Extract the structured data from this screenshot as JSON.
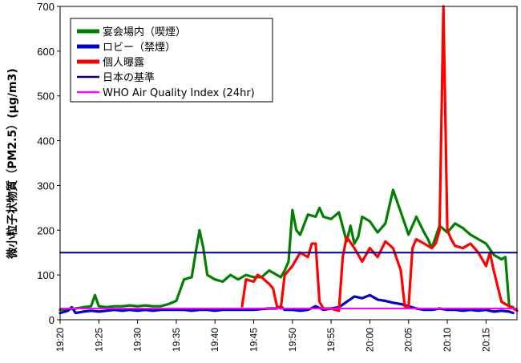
{
  "chart_data": {
    "type": "line",
    "ylabel": "微小粒子状物質（PM2.5）(μg/m3)",
    "xlabel": "",
    "ylim": [
      0,
      700
    ],
    "yticks": [
      0,
      100,
      200,
      300,
      400,
      500,
      600,
      700
    ],
    "xticks": [
      "19:20",
      "19:25",
      "19:30",
      "19:35",
      "19:40",
      "19:45",
      "19:50",
      "19:55",
      "20:00",
      "20:05",
      "20:10",
      "20:15"
    ],
    "xlim": [
      "19:20",
      "20:19"
    ],
    "grid": false,
    "legend_position": "top-left",
    "series": [
      {
        "name": "宴会場内（喫煙）",
        "color": "#008000",
        "points": [
          [
            "19:20",
            22
          ],
          [
            "19:21",
            24
          ],
          [
            "19:22",
            25
          ],
          [
            "19:23",
            28
          ],
          [
            "19:24",
            30
          ],
          [
            "19:24.5",
            55
          ],
          [
            "19:25",
            30
          ],
          [
            "19:26",
            28
          ],
          [
            "19:27",
            30
          ],
          [
            "19:28",
            30
          ],
          [
            "19:29",
            32
          ],
          [
            "19:30",
            30
          ],
          [
            "19:31",
            32
          ],
          [
            "19:32",
            30
          ],
          [
            "19:33",
            30
          ],
          [
            "19:34",
            35
          ],
          [
            "19:35",
            42
          ],
          [
            "19:36",
            90
          ],
          [
            "19:37",
            95
          ],
          [
            "19:37.5",
            150
          ],
          [
            "19:38",
            200
          ],
          [
            "19:38.5",
            160
          ],
          [
            "19:39",
            100
          ],
          [
            "19:40",
            90
          ],
          [
            "19:41",
            85
          ],
          [
            "19:42",
            100
          ],
          [
            "19:43",
            90
          ],
          [
            "19:44",
            100
          ],
          [
            "19:45",
            95
          ],
          [
            "19:46",
            95
          ],
          [
            "19:47",
            110
          ],
          [
            "19:48",
            100
          ],
          [
            "19:48.5",
            95
          ],
          [
            "19:49",
            110
          ],
          [
            "19:49.5",
            130
          ],
          [
            "19:50",
            245
          ],
          [
            "19:50.5",
            200
          ],
          [
            "19:51",
            190
          ],
          [
            "19:52",
            235
          ],
          [
            "19:53",
            230
          ],
          [
            "19:53.5",
            250
          ],
          [
            "19:54",
            230
          ],
          [
            "19:55",
            225
          ],
          [
            "19:56",
            240
          ],
          [
            "19:57",
            175
          ],
          [
            "19:57.5",
            210
          ],
          [
            "19:58",
            170
          ],
          [
            "19:58.5",
            185
          ],
          [
            "19:59",
            230
          ],
          [
            "20:00",
            220
          ],
          [
            "20:01",
            195
          ],
          [
            "20:02",
            215
          ],
          [
            "20:03",
            290
          ],
          [
            "20:04",
            240
          ],
          [
            "20:05",
            190
          ],
          [
            "20:06",
            230
          ],
          [
            "20:07",
            195
          ],
          [
            "20:07.5",
            180
          ],
          [
            "20:08",
            160
          ],
          [
            "20:09",
            210
          ],
          [
            "20:10",
            195
          ],
          [
            "20:11",
            215
          ],
          [
            "20:12",
            205
          ],
          [
            "20:13",
            190
          ],
          [
            "20:14",
            180
          ],
          [
            "20:15",
            170
          ],
          [
            "20:16",
            145
          ],
          [
            "20:17",
            135
          ],
          [
            "20:17.5",
            140
          ],
          [
            "20:18",
            30
          ],
          [
            "20:18.5",
            28
          ]
        ]
      },
      {
        "name": "ロビー（禁煙）",
        "color": "#0000d0",
        "points": [
          [
            "19:20",
            15
          ],
          [
            "19:21",
            20
          ],
          [
            "19:21.5",
            28
          ],
          [
            "19:22",
            15
          ],
          [
            "19:23",
            18
          ],
          [
            "19:24",
            20
          ],
          [
            "19:25",
            18
          ],
          [
            "19:26",
            20
          ],
          [
            "19:27",
            22
          ],
          [
            "19:28",
            20
          ],
          [
            "19:29",
            22
          ],
          [
            "19:30",
            20
          ],
          [
            "19:31",
            22
          ],
          [
            "19:32",
            20
          ],
          [
            "19:33",
            22
          ],
          [
            "19:34",
            22
          ],
          [
            "19:35",
            22
          ],
          [
            "19:36",
            22
          ],
          [
            "19:37",
            20
          ],
          [
            "19:38",
            22
          ],
          [
            "19:39",
            22
          ],
          [
            "19:40",
            20
          ],
          [
            "19:41",
            22
          ],
          [
            "19:42",
            22
          ],
          [
            "19:43",
            22
          ],
          [
            "19:44",
            22
          ],
          [
            "19:45",
            22
          ],
          [
            "19:46",
            24
          ],
          [
            "19:47",
            25
          ],
          [
            "19:48",
            25
          ],
          [
            "19:48.5",
            30
          ],
          [
            "19:49",
            22
          ],
          [
            "19:50",
            22
          ],
          [
            "19:51",
            20
          ],
          [
            "19:52",
            22
          ],
          [
            "19:53",
            30
          ],
          [
            "19:54",
            22
          ],
          [
            "19:55",
            25
          ],
          [
            "19:56",
            28
          ],
          [
            "19:57",
            40
          ],
          [
            "19:58",
            52
          ],
          [
            "19:59",
            48
          ],
          [
            "20:00",
            55
          ],
          [
            "20:01",
            45
          ],
          [
            "20:02",
            42
          ],
          [
            "20:03",
            38
          ],
          [
            "20:04",
            35
          ],
          [
            "20:05",
            30
          ],
          [
            "20:06",
            25
          ],
          [
            "20:07",
            22
          ],
          [
            "20:08",
            22
          ],
          [
            "20:09",
            25
          ],
          [
            "20:10",
            22
          ],
          [
            "20:11",
            22
          ],
          [
            "20:12",
            20
          ],
          [
            "20:13",
            22
          ],
          [
            "20:14",
            20
          ],
          [
            "20:15",
            22
          ],
          [
            "20:16",
            18
          ],
          [
            "20:17",
            20
          ],
          [
            "20:18",
            18
          ],
          [
            "20:18.5",
            15
          ]
        ]
      },
      {
        "name": "個人曝露",
        "color": "#ff0000",
        "points": [
          [
            "19:43.5",
            30
          ],
          [
            "19:44",
            90
          ],
          [
            "19:45",
            85
          ],
          [
            "19:45.5",
            100
          ],
          [
            "19:46",
            95
          ],
          [
            "19:47",
            80
          ],
          [
            "19:47.5",
            70
          ],
          [
            "19:48",
            30
          ],
          [
            "19:48.5",
            25
          ],
          [
            "19:49",
            100
          ],
          [
            "19:50",
            120
          ],
          [
            "19:50.5",
            135
          ],
          [
            "19:51",
            150
          ],
          [
            "19:52",
            140
          ],
          [
            "19:52.5",
            170
          ],
          [
            "19:53",
            170
          ],
          [
            "19:53.5",
            40
          ],
          [
            "19:54",
            25
          ],
          [
            "19:55",
            25
          ],
          [
            "19:56",
            20
          ],
          [
            "19:56.5",
            140
          ],
          [
            "19:57",
            185
          ],
          [
            "19:58",
            160
          ],
          [
            "19:59",
            130
          ],
          [
            "20:00",
            160
          ],
          [
            "20:01",
            140
          ],
          [
            "20:02",
            175
          ],
          [
            "20:03",
            160
          ],
          [
            "20:04",
            110
          ],
          [
            "20:04.5",
            30
          ],
          [
            "20:05",
            28
          ],
          [
            "20:05.5",
            160
          ],
          [
            "20:06",
            180
          ],
          [
            "20:07",
            170
          ],
          [
            "20:08",
            160
          ],
          [
            "20:08.5",
            170
          ],
          [
            "20:09",
            200
          ],
          [
            "20:09.5",
            700
          ],
          [
            "20:10",
            200
          ],
          [
            "20:10.5",
            180
          ],
          [
            "20:11",
            165
          ],
          [
            "20:12",
            160
          ],
          [
            "20:13",
            170
          ],
          [
            "20:14",
            150
          ],
          [
            "20:15",
            120
          ],
          [
            "20:15.5",
            150
          ],
          [
            "20:16",
            110
          ],
          [
            "20:17",
            40
          ],
          [
            "20:18",
            30
          ],
          [
            "20:19",
            20
          ]
        ]
      },
      {
        "name": "日本の基準",
        "color": "#000080",
        "points": [
          [
            "19:20",
            150
          ],
          [
            "20:19",
            150
          ]
        ]
      },
      {
        "name": "WHO Air Quality Index (24hr)",
        "color": "#ff00ff",
        "points": [
          [
            "19:20",
            25
          ],
          [
            "20:19",
            25
          ]
        ]
      }
    ]
  }
}
